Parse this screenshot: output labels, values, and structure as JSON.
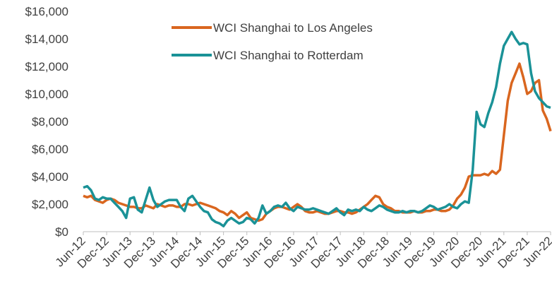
{
  "chart_data": {
    "type": "line",
    "categories": [
      "Jun-12",
      null,
      null,
      null,
      null,
      null,
      "Dec-12",
      null,
      null,
      null,
      null,
      null,
      "Jun-13",
      null,
      null,
      null,
      null,
      null,
      "Dec-13",
      null,
      null,
      null,
      null,
      null,
      "Jun-14",
      null,
      null,
      null,
      null,
      null,
      "Dec-14",
      null,
      null,
      null,
      null,
      null,
      "Jun-15",
      null,
      null,
      null,
      null,
      null,
      "Dec-15",
      null,
      null,
      null,
      null,
      null,
      "Jun-16",
      null,
      null,
      null,
      null,
      null,
      "Dec-16",
      null,
      null,
      null,
      null,
      null,
      "Jun-17",
      null,
      null,
      null,
      null,
      null,
      "Dec-17",
      null,
      null,
      null,
      null,
      null,
      "Jun-18",
      null,
      null,
      null,
      null,
      null,
      "Dec-18",
      null,
      null,
      null,
      null,
      null,
      "Jun-19",
      null,
      null,
      null,
      null,
      null,
      "Dec-19",
      null,
      null,
      null,
      null,
      null,
      "Jun-20",
      null,
      null,
      null,
      null,
      null,
      "Dec-20",
      null,
      null,
      null,
      null,
      null,
      "Jun-21",
      null,
      null,
      null,
      null,
      null,
      "Dec-21",
      null,
      null,
      null,
      null,
      null,
      "Jun-22"
    ],
    "series": [
      {
        "name": "WCI Shanghai to Los Angeles",
        "color": "#d9661f",
        "values": [
          2600,
          2500,
          2600,
          2300,
          2200,
          2100,
          2300,
          2400,
          2300,
          2100,
          2000,
          1900,
          1800,
          1800,
          1700,
          1700,
          1900,
          1800,
          1700,
          2000,
          1900,
          1800,
          1900,
          1900,
          1800,
          1800,
          2000,
          2000,
          1900,
          2000,
          2100,
          2000,
          1900,
          1800,
          1700,
          1500,
          1400,
          1200,
          1500,
          1300,
          1000,
          1200,
          1400,
          1000,
          900,
          800,
          900,
          1300,
          1500,
          1700,
          1800,
          1800,
          1700,
          1600,
          1800,
          2000,
          1800,
          1500,
          1400,
          1400,
          1500,
          1400,
          1300,
          1300,
          1400,
          1500,
          1500,
          1400,
          1400,
          1300,
          1400,
          1600,
          1800,
          2000,
          2300,
          2600,
          2500,
          2000,
          1800,
          1700,
          1500,
          1500,
          1400,
          1400,
          1400,
          1500,
          1400,
          1400,
          1500,
          1500,
          1600,
          1600,
          1500,
          1500,
          1600,
          1900,
          2400,
          2700,
          3200,
          4000,
          4100,
          4100,
          4100,
          4200,
          4100,
          4400,
          4200,
          4500,
          7000,
          9500,
          10800,
          11500,
          12200,
          11200,
          10000,
          10200,
          10800,
          11000,
          8800,
          8200,
          7300
        ]
      },
      {
        "name": "WCI Shanghai to Rotterdam",
        "color": "#1a9297",
        "values": [
          3200,
          3300,
          3000,
          2400,
          2300,
          2500,
          2400,
          2400,
          2100,
          1800,
          1500,
          1000,
          2400,
          2500,
          1600,
          1400,
          2300,
          3200,
          2300,
          1800,
          2000,
          2200,
          2300,
          2300,
          2300,
          1800,
          1500,
          2400,
          2600,
          2200,
          1800,
          1500,
          1400,
          900,
          700,
          600,
          400,
          800,
          1000,
          800,
          600,
          700,
          1000,
          900,
          600,
          1000,
          1900,
          1300,
          1500,
          1800,
          1900,
          1800,
          2100,
          1700,
          1500,
          1800,
          1700,
          1600,
          1600,
          1700,
          1600,
          1500,
          1400,
          1300,
          1500,
          1700,
          1400,
          1200,
          1600,
          1500,
          1600,
          1500,
          1800,
          1600,
          1500,
          1700,
          1900,
          1800,
          1600,
          1500,
          1400,
          1400,
          1500,
          1400,
          1500,
          1500,
          1400,
          1500,
          1700,
          1900,
          1800,
          1600,
          1700,
          1800,
          2000,
          1800,
          1700,
          2000,
          2200,
          2100,
          4500,
          8700,
          7800,
          7600,
          8600,
          9400,
          10500,
          12200,
          13500,
          14000,
          14500,
          14000,
          13600,
          13700,
          13600,
          11500,
          10200,
          9700,
          9400,
          9100,
          9000
        ]
      }
    ],
    "ylim": [
      0,
      16000
    ],
    "yticks": [
      {
        "value": 0,
        "label": "$0"
      },
      {
        "value": 2000,
        "label": "$2,000"
      },
      {
        "value": 4000,
        "label": "$4,000"
      },
      {
        "value": 6000,
        "label": "$6,000"
      },
      {
        "value": 8000,
        "label": "$8,000"
      },
      {
        "value": 10000,
        "label": "$10,000"
      },
      {
        "value": 12000,
        "label": "$12,000"
      },
      {
        "value": 14000,
        "label": "$14,000"
      },
      {
        "value": 16000,
        "label": "$16,000"
      }
    ]
  }
}
